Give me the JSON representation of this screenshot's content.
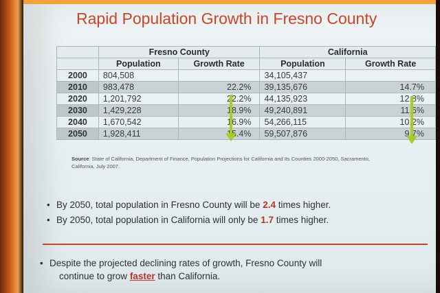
{
  "title": "Rapid Population Growth in Fresno County",
  "table": {
    "group_headers": [
      "Fresno County",
      "California"
    ],
    "col_headers": [
      "Population",
      "Growth Rate",
      "Population",
      "Growth Rate"
    ],
    "rows": [
      {
        "year": "2000",
        "fresno_pop": "804,508",
        "fresno_rate": "",
        "ca_pop": "34,105,437",
        "ca_rate": ""
      },
      {
        "year": "2010",
        "fresno_pop": "983,478",
        "fresno_rate": "22.2%",
        "ca_pop": "39,135,676",
        "ca_rate": "14.7%"
      },
      {
        "year": "2020",
        "fresno_pop": "1,201,792",
        "fresno_rate": "22.2%",
        "ca_pop": "44,135,923",
        "ca_rate": "12.8%"
      },
      {
        "year": "2030",
        "fresno_pop": "1,429,228",
        "fresno_rate": "18.9%",
        "ca_pop": "49,240,891",
        "ca_rate": "11.6%"
      },
      {
        "year": "2040",
        "fresno_pop": "1,670,542",
        "fresno_rate": "16.9%",
        "ca_pop": "54,266,115",
        "ca_rate": "10.2%"
      },
      {
        "year": "2050",
        "fresno_pop": "1,928,411",
        "fresno_rate": "15.4%",
        "ca_pop": "59,507,876",
        "ca_rate": "9.7%"
      }
    ]
  },
  "source": {
    "label": "Source",
    "text": ": State of California, Department of Finance, Population Projections for California and Its Counties 2000-2050, Sacramento, California, July 2007."
  },
  "bullets": {
    "b1": {
      "pre": "By 2050, total population in Fresno County will be ",
      "em": "2.4",
      "post": " times higher."
    },
    "b2": {
      "pre": "By 2050, total population in California will only be ",
      "em": "1.7",
      "post": " times higher."
    },
    "b3": {
      "line1": "Despite the projected declining rates of growth, Fresno County will",
      "pre": "continue to grow ",
      "em": "faster",
      "post": " than California."
    }
  },
  "colors": {
    "title": "#c9452a",
    "arrow": "#a7cc2a",
    "accent": "#b8322a",
    "rule": "#c9452a"
  }
}
